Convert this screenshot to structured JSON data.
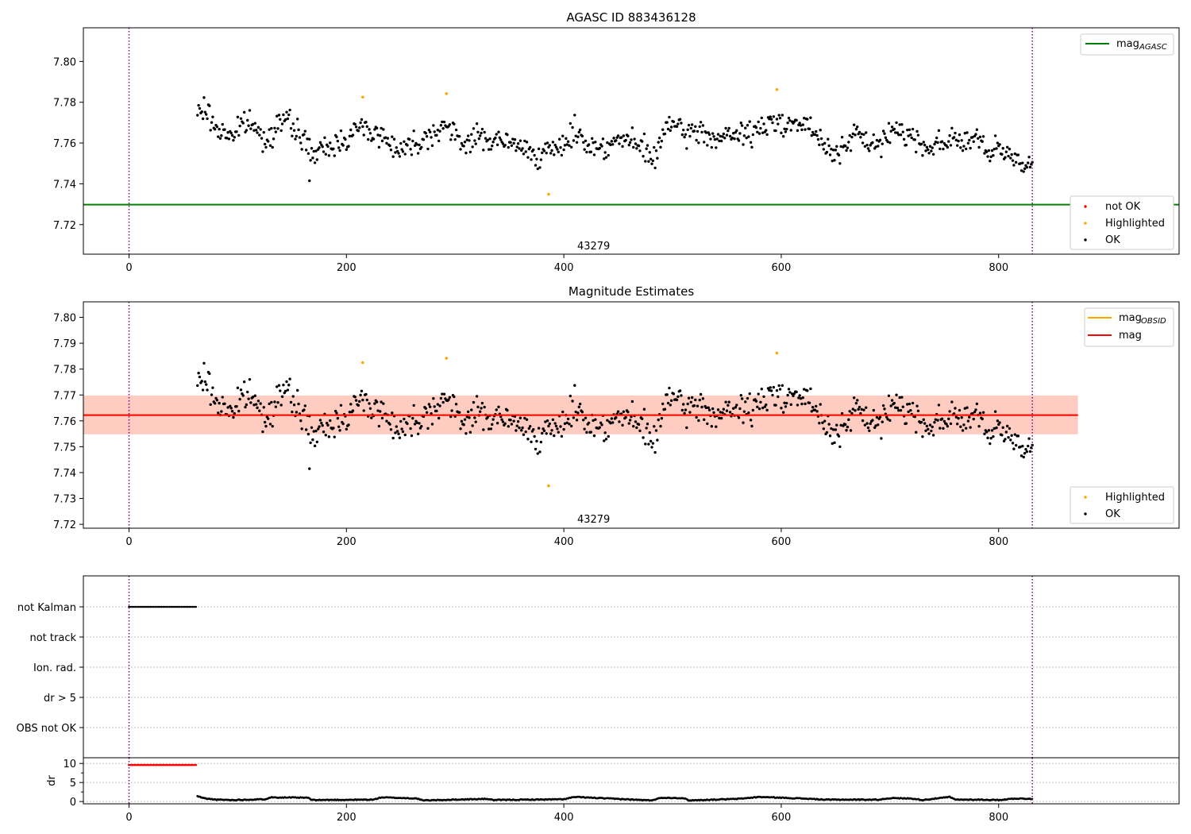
{
  "chart_data": [
    {
      "type": "scatter",
      "title": "AGASC ID 883436128",
      "xlim": [
        -42,
        966
      ],
      "ylim": [
        7.7055,
        7.8165
      ],
      "xticks": [
        0,
        200,
        400,
        600,
        800
      ],
      "yticks": [
        7.72,
        7.74,
        7.76,
        7.78,
        7.8
      ],
      "annotation": {
        "text": "43279",
        "x": 415,
        "y": 7.7098
      },
      "vlines": [
        {
          "x": 0,
          "color": "#800080",
          "style": "dotted"
        },
        {
          "x": 831,
          "color": "#800080",
          "style": "dotted"
        }
      ],
      "hline": {
        "name": "mag_AGASC",
        "y": 7.7298,
        "color": "#008000"
      },
      "legend_lines": {
        "placement": "top-right",
        "entries": [
          {
            "label": "mag",
            "sub": "AGASC",
            "color": "#008000"
          }
        ]
      },
      "legend_points": {
        "placement": "lower-right",
        "entries": [
          {
            "label": "not OK",
            "color": "#ff0000"
          },
          {
            "label": "Highlighted",
            "color": "#ffa500"
          },
          {
            "label": "OK",
            "color": "#000000"
          }
        ]
      },
      "series": [
        {
          "name": "OK",
          "color": "#000000",
          "trend": [
            [
              63,
              7.774
            ],
            [
              70,
              7.777
            ],
            [
              80,
              7.767
            ],
            [
              95,
              7.764
            ],
            [
              110,
              7.771
            ],
            [
              125,
              7.761
            ],
            [
              140,
              7.772
            ],
            [
              155,
              7.766
            ],
            [
              170,
              7.754
            ],
            [
              185,
              7.758
            ],
            [
              200,
              7.763
            ],
            [
              215,
              7.768
            ],
            [
              230,
              7.764
            ],
            [
              250,
              7.757
            ],
            [
              270,
              7.762
            ],
            [
              290,
              7.769
            ],
            [
              305,
              7.76
            ],
            [
              320,
              7.763
            ],
            [
              340,
              7.761
            ],
            [
              360,
              7.758
            ],
            [
              380,
              7.754
            ],
            [
              395,
              7.757
            ],
            [
              410,
              7.766
            ],
            [
              425,
              7.758
            ],
            [
              440,
              7.759
            ],
            [
              455,
              7.762
            ],
            [
              470,
              7.758
            ],
            [
              485,
              7.752
            ],
            [
              495,
              7.771
            ],
            [
              510,
              7.764
            ],
            [
              525,
              7.766
            ],
            [
              540,
              7.762
            ],
            [
              560,
              7.764
            ],
            [
              580,
              7.766
            ],
            [
              595,
              7.771
            ],
            [
              610,
              7.77
            ],
            [
              625,
              7.768
            ],
            [
              640,
              7.758
            ],
            [
              655,
              7.756
            ],
            [
              670,
              7.764
            ],
            [
              690,
              7.758
            ],
            [
              705,
              7.768
            ],
            [
              720,
              7.763
            ],
            [
              735,
              7.758
            ],
            [
              755,
              7.762
            ],
            [
              770,
              7.761
            ],
            [
              780,
              7.762
            ],
            [
              790,
              7.755
            ],
            [
              800,
              7.756
            ],
            [
              815,
              7.753
            ],
            [
              831,
              7.749
            ]
          ],
          "noise": 0.0045,
          "seed": 7
        },
        {
          "name": "Highlighted",
          "color": "#ffa500",
          "points": [
            [
              215,
              7.7825
            ],
            [
              292,
              7.7842
            ],
            [
              386,
              7.7349
            ],
            [
              596,
              7.7862
            ]
          ]
        }
      ]
    },
    {
      "type": "scatter",
      "title": "Magnitude Estimates",
      "xlim": [
        -42,
        966
      ],
      "ylim": [
        7.7185,
        7.806
      ],
      "xticks": [
        0,
        200,
        400,
        600,
        800
      ],
      "yticks": [
        7.72,
        7.73,
        7.74,
        7.75,
        7.76,
        7.77,
        7.78,
        7.79,
        7.8
      ],
      "annotation": {
        "text": "43279",
        "x": 415,
        "y": 7.7222
      },
      "vlines": [
        {
          "x": 0,
          "color": "#800080",
          "style": "dotted"
        },
        {
          "x": 831,
          "color": "#800080",
          "style": "dotted"
        }
      ],
      "bands": [
        {
          "x0": -42,
          "x1": 873,
          "y0": 7.7548,
          "y1": 7.7698,
          "color": "#ffc0cb",
          "opacity": 0.45
        },
        {
          "x0": -42,
          "x1": 873,
          "y0": 7.7548,
          "y1": 7.7698,
          "color": "#ffa07a",
          "opacity": 0.35
        }
      ],
      "lines": [
        {
          "name": "mag_OBSID",
          "color": "#ffa500",
          "points": [
            [
              -42,
              7.7622
            ],
            [
              873,
              7.7622
            ]
          ]
        },
        {
          "name": "mag",
          "color": "#ff0000",
          "points": [
            [
              -42,
              7.7622
            ],
            [
              873,
              7.7622
            ]
          ]
        }
      ],
      "legend_lines": {
        "placement": "top-right",
        "entries": [
          {
            "label": "mag",
            "sub": "OBSID",
            "color": "#ffa500"
          },
          {
            "label": "mag",
            "sub": "",
            "color": "#ff0000"
          }
        ]
      },
      "legend_points": {
        "placement": "lower-right",
        "entries": [
          {
            "label": "Highlighted",
            "color": "#ffa500"
          },
          {
            "label": "OK",
            "color": "#000000"
          }
        ]
      },
      "series": [
        {
          "name": "OK",
          "color": "#000000",
          "same_as": "panel1"
        },
        {
          "name": "Highlighted",
          "color": "#ffa500",
          "points": [
            [
              215,
              7.7825
            ],
            [
              292,
              7.7842
            ],
            [
              386,
              7.7349
            ],
            [
              596,
              7.7862
            ]
          ]
        }
      ]
    },
    {
      "type": "scatter",
      "title": "",
      "xlim": [
        -42,
        966
      ],
      "categories": [
        "not Kalman",
        "not track",
        "Ion. rad.",
        "dr > 5",
        "OBS not OK"
      ],
      "vlines": [
        {
          "x": 0,
          "color": "#800080",
          "style": "dotted"
        },
        {
          "x": 831,
          "color": "#800080",
          "style": "dotted"
        }
      ],
      "series": [
        {
          "name": "not Kalman",
          "color": "#000000",
          "x_range": [
            0,
            62
          ],
          "step": 1.5
        }
      ]
    },
    {
      "type": "scatter",
      "title": "",
      "xlim": [
        -42,
        966
      ],
      "ylim": [
        -0.6,
        11.5
      ],
      "xticks": [
        0,
        200,
        400,
        600,
        800
      ],
      "yticks": [
        0,
        5,
        10
      ],
      "ylabel": "dr",
      "vlines": [
        {
          "x": 0,
          "color": "#800080",
          "style": "dotted"
        },
        {
          "x": 831,
          "color": "#800080",
          "style": "dotted"
        }
      ],
      "series": [
        {
          "name": "dr clipped",
          "color": "#ff0000",
          "x_range": [
            0,
            62
          ],
          "y": 9.6,
          "step": 1.5
        },
        {
          "name": "dr",
          "color": "#000000",
          "x_range": [
            63,
            831
          ],
          "step": 1.1,
          "segments": [
            [
              63,
              1.4
            ],
            [
              70,
              0.8
            ],
            [
              80,
              0.5
            ],
            [
              95,
              0.4
            ],
            [
              125,
              0.6
            ],
            [
              130,
              1.1
            ],
            [
              165,
              1.0
            ],
            [
              168,
              0.4
            ],
            [
              225,
              0.5
            ],
            [
              232,
              1.1
            ],
            [
              265,
              0.8
            ],
            [
              270,
              0.3
            ],
            [
              330,
              0.7
            ],
            [
              335,
              0.4
            ],
            [
              400,
              0.6
            ],
            [
              410,
              1.2
            ],
            [
              480,
              0.3
            ],
            [
              490,
              1.0
            ],
            [
              510,
              0.9
            ],
            [
              515,
              0.3
            ],
            [
              560,
              0.7
            ],
            [
              580,
              1.2
            ],
            [
              600,
              1.0
            ],
            [
              620,
              0.8
            ],
            [
              640,
              0.5
            ],
            [
              690,
              0.5
            ],
            [
              700,
              0.9
            ],
            [
              720,
              0.8
            ],
            [
              730,
              0.4
            ],
            [
              755,
              1.2
            ],
            [
              760,
              0.5
            ],
            [
              780,
              0.5
            ],
            [
              800,
              0.4
            ],
            [
              815,
              0.8
            ],
            [
              831,
              0.7
            ]
          ]
        }
      ]
    }
  ]
}
